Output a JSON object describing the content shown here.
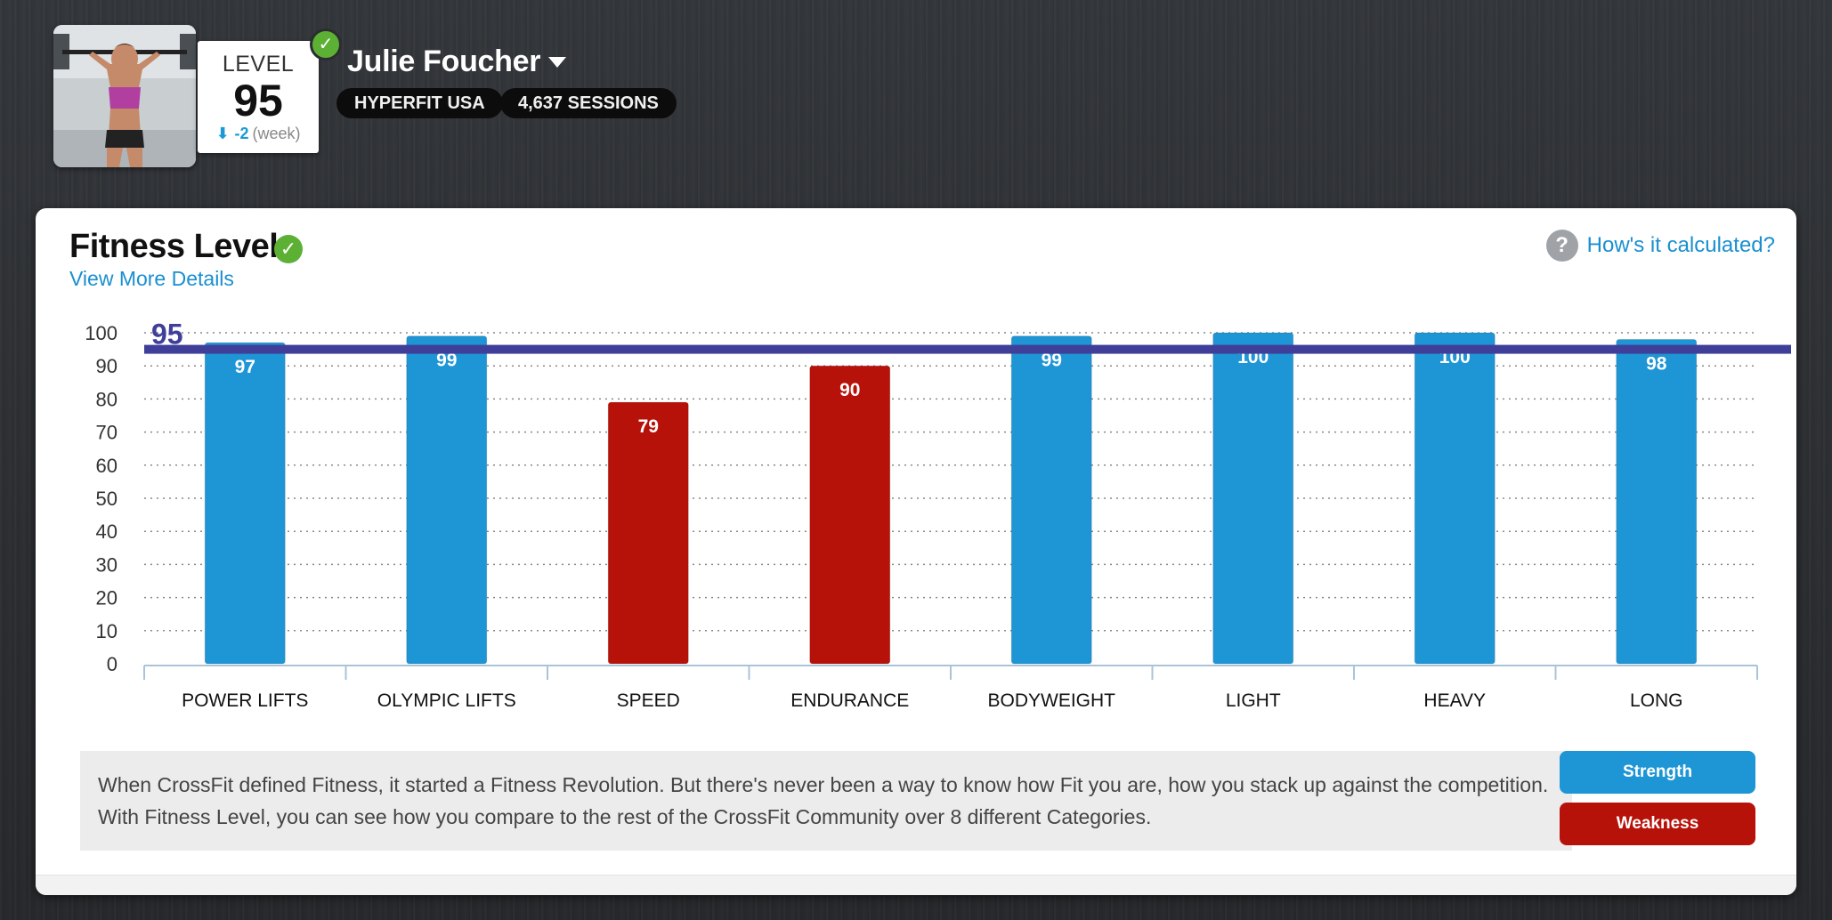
{
  "profile": {
    "name": "Julie Foucher",
    "level_label": "LEVEL",
    "level": "95",
    "change_arrow": "⬇",
    "change": "-2",
    "change_period": "(week)",
    "team": "HYPERFIT USA",
    "sessions": "4,637 SESSIONS",
    "verified_icon": "check-circle-icon"
  },
  "card": {
    "title": "Fitness Level",
    "view_more": "View More Details",
    "help_icon_glyph": "?",
    "help_text": "How's it calculated?",
    "description": "When CrossFit defined Fitness, it started a Fitness Revolution. But there's never been a way to know how Fit you are, how you stack up against the competition. With Fitness Level, you can see how you compare to the rest of the CrossFit Community over 8 different Categories.",
    "legend": {
      "strength": "Strength",
      "weakness": "Weakness"
    }
  },
  "colors": {
    "strength": "#1e95d5",
    "weakness": "#b71209",
    "level_line": "#3f3f9a",
    "link": "#1a8fd0",
    "verified": "#5cb034"
  },
  "chart_data": {
    "type": "bar",
    "title": "",
    "xlabel": "",
    "ylabel": "",
    "ylim": [
      0,
      100
    ],
    "yticks": [
      0,
      10,
      20,
      30,
      40,
      50,
      60,
      70,
      80,
      90,
      100
    ],
    "grid": true,
    "categories": [
      "POWER LIFTS",
      "OLYMPIC LIFTS",
      "SPEED",
      "ENDURANCE",
      "BODYWEIGHT",
      "LIGHT",
      "HEAVY",
      "LONG"
    ],
    "values": [
      97,
      99,
      79,
      90,
      99,
      100,
      100,
      98
    ],
    "classes": [
      "Strength",
      "Strength",
      "Weakness",
      "Weakness",
      "Strength",
      "Strength",
      "Strength",
      "Strength"
    ],
    "reference_line": {
      "value": 95,
      "label": "95"
    }
  }
}
